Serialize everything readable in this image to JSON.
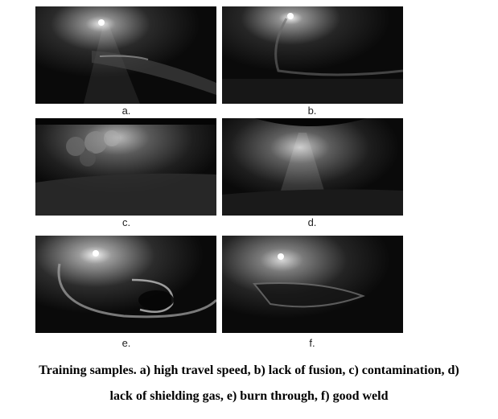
{
  "panels": [
    {
      "id": "a",
      "label": "a."
    },
    {
      "id": "b",
      "label": "b."
    },
    {
      "id": "c",
      "label": "c."
    },
    {
      "id": "d",
      "label": "d."
    },
    {
      "id": "e",
      "label": "e."
    },
    {
      "id": "f",
      "label": "f."
    }
  ],
  "caption": {
    "line1": "Training samples. a) high travel speed, b) lack of fusion, c) contamination, d)",
    "line2": "lack of shielding gas, e) burn through, f) good weld"
  }
}
